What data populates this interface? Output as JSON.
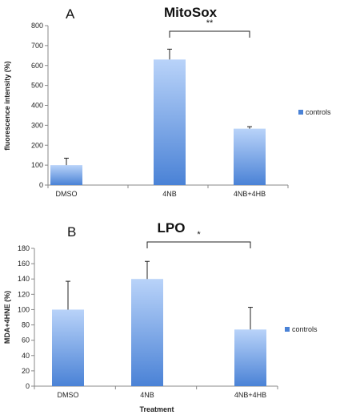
{
  "charts": [
    {
      "panel_letter": "A",
      "title": "MitoSox",
      "ylabel": "fluorescence intensity (%)",
      "xlabel": "",
      "legend": "controls"
    },
    {
      "panel_letter": "B",
      "title": "LPO",
      "ylabel": "MDA+4HNE (%)",
      "xlabel": "Treatment",
      "legend": "controls"
    }
  ],
  "colors": {
    "bar_top": "#b9d3f9",
    "bar_bottom": "#4a82d6",
    "axis": "#888888"
  },
  "chart_data": [
    {
      "type": "bar",
      "title": "MitoSox",
      "panel": "A",
      "xlabel": "",
      "ylabel": "fluorescence intensity (%)",
      "categories": [
        "DMSO",
        "4NB",
        "4NB+4HB"
      ],
      "series": [
        {
          "name": "controls",
          "values": [
            100,
            630,
            283
          ],
          "errors": [
            35,
            52,
            10
          ]
        }
      ],
      "ylim": [
        0,
        800
      ],
      "yticks": [
        0,
        100,
        200,
        300,
        400,
        500,
        600,
        700,
        800
      ],
      "grid": false,
      "legend_position": "right",
      "significance": [
        {
          "from": "4NB",
          "to": "4NB+4HB",
          "label": "**"
        }
      ]
    },
    {
      "type": "bar",
      "title": "LPO",
      "panel": "B",
      "xlabel": "Treatment",
      "ylabel": "MDA+4HNE (%)",
      "categories": [
        "DMSO",
        "4NB",
        "4NB+4HB"
      ],
      "series": [
        {
          "name": "controls",
          "values": [
            100,
            140,
            74
          ],
          "errors": [
            37,
            23,
            29
          ]
        }
      ],
      "ylim": [
        0,
        180
      ],
      "yticks": [
        0,
        20,
        40,
        60,
        80,
        100,
        120,
        140,
        160,
        180
      ],
      "grid": false,
      "legend_position": "right",
      "significance": [
        {
          "from": "4NB",
          "to": "4NB+4HB",
          "label": "*"
        }
      ]
    }
  ]
}
